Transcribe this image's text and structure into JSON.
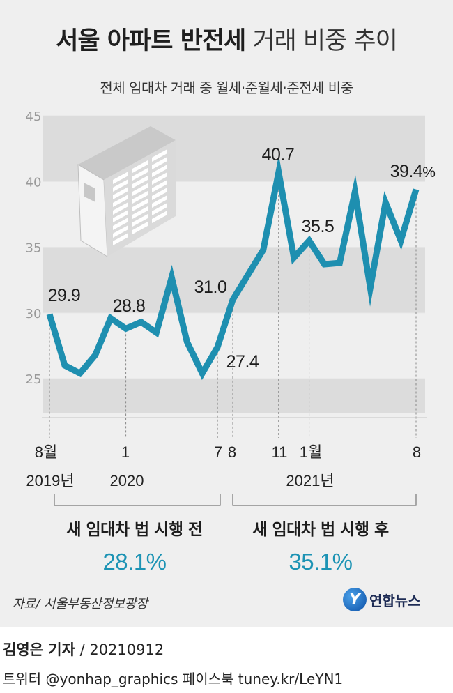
{
  "title": {
    "bold": "서울 아파트 반전세",
    "light": "거래 비중 추이"
  },
  "subtitle": "전체 임대차 거래 중 월세·준월세·준전세 비중",
  "chart_data": {
    "type": "line",
    "title": "서울 아파트 반전세 거래 비중 추이",
    "subtitle": "전체 임대차 거래 중 월세·준월세·준전세 비중",
    "ylim": [
      20,
      45
    ],
    "yticks": [
      25,
      30,
      35,
      40,
      45
    ],
    "unit": "%",
    "series": [
      {
        "x": [
          "2019-08",
          "2019-09",
          "2019-10",
          "2019-11",
          "2019-12",
          "2020-01",
          "2020-02",
          "2020-03",
          "2020-04",
          "2020-05",
          "2020-06",
          "2020-07",
          "2020-08",
          "2020-09",
          "2020-10",
          "2020-11",
          "2020-12",
          "2021-01",
          "2021-02",
          "2021-03",
          "2021-04",
          "2021-05",
          "2021-06",
          "2021-07",
          "2021-08"
        ],
        "values": [
          29.9,
          26.0,
          25.4,
          26.8,
          29.6,
          28.8,
          29.3,
          28.5,
          32.7,
          27.8,
          25.4,
          27.4,
          31.0,
          32.9,
          34.8,
          40.7,
          34.2,
          35.5,
          33.7,
          33.8,
          39.2,
          31.9,
          38.4,
          35.5,
          39.4
        ]
      }
    ],
    "data_labels": [
      {
        "x": "2019-08",
        "text": "29.9"
      },
      {
        "x": "2020-01",
        "text": "28.8"
      },
      {
        "x": "2020-07",
        "text": "27.4"
      },
      {
        "x": "2020-08",
        "text": "31.0"
      },
      {
        "x": "2020-11",
        "text": "40.7"
      },
      {
        "x": "2021-01",
        "text": "35.5"
      },
      {
        "x": "2021-08",
        "text": "39.4",
        "suffix": "%"
      }
    ],
    "x_tick_labels": [
      {
        "x": "2019-08",
        "label": "8월"
      },
      {
        "x": "2020-01",
        "label": "1"
      },
      {
        "x": "2020-07",
        "label": "7"
      },
      {
        "x": "2020-08",
        "label": "8"
      },
      {
        "x": "2020-11",
        "label": "11"
      },
      {
        "x": "2021-01",
        "label": "1월"
      },
      {
        "x": "2021-08",
        "label": "8"
      }
    ],
    "year_labels": [
      {
        "x": "2019-08",
        "label": "2019년"
      },
      {
        "x": "2020-01",
        "label": "2020"
      },
      {
        "x": "2021-01",
        "label": "2021년"
      }
    ],
    "periods": [
      {
        "from": "2019-08",
        "to": "2020-07",
        "label": "새 임대차 법 시행 전",
        "value": "28.1%"
      },
      {
        "from": "2020-08",
        "to": "2021-08",
        "label": "새 임대차 법 시행 후",
        "value": "35.1%"
      }
    ],
    "colors": {
      "line": "#1e8fb0",
      "value": "#1c93b4",
      "band": "#dcdcdc"
    }
  },
  "source": "자료/ 서울부동산정보광장",
  "logo": {
    "mark": "Y",
    "name": "연합뉴스"
  },
  "footer": {
    "reporter": "김영은 기자",
    "date": " / 20210912",
    "social": "트위터 @yonhap_graphics  페이스북 tuney.kr/LeYN1"
  }
}
